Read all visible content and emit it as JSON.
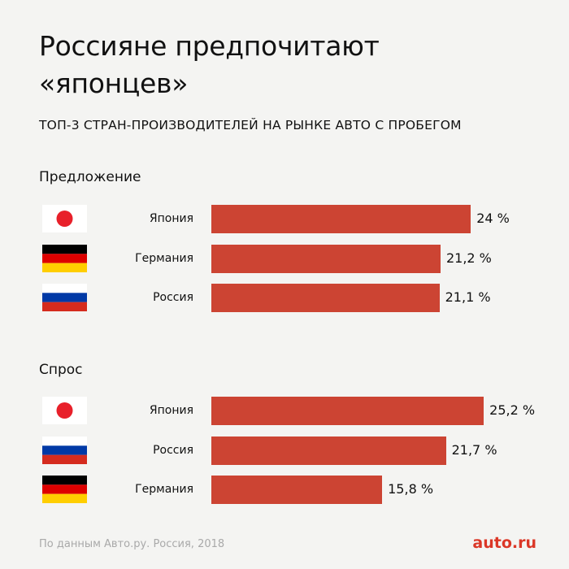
{
  "title": "Россияне предпочитают «японцев»",
  "subtitle": "ТОП-3 СТРАН-ПРОИЗВОДИТЕЛЕЙ НА РЫНКЕ АВТО С ПРОБЕГОМ",
  "source": "По данным Авто.ру. Россия, 2018",
  "brand": "auto.ru",
  "colors": {
    "bar": "#cc4433",
    "brand": "#db3727",
    "background": "#f4f4f2"
  },
  "chart_data": [
    {
      "type": "bar",
      "orientation": "horizontal",
      "title": "Предложение",
      "unit": "%",
      "categories": [
        "Япония",
        "Германия",
        "Россия"
      ],
      "values": [
        24,
        21.2,
        21.1
      ],
      "value_labels": [
        "24 %",
        "21,2 %",
        "21,1 %"
      ],
      "flags": [
        "japan-flag-icon",
        "germany-flag-icon",
        "russia-flag-icon"
      ],
      "grid": false,
      "legend": "none"
    },
    {
      "type": "bar",
      "orientation": "horizontal",
      "title": "Спрос",
      "unit": "%",
      "categories": [
        "Япония",
        "Россия",
        "Германия"
      ],
      "values": [
        25.2,
        21.7,
        15.8
      ],
      "value_labels": [
        "25,2 %",
        "21,7 %",
        "15,8 %"
      ],
      "flags": [
        "japan-flag-icon",
        "russia-flag-icon",
        "germany-flag-icon"
      ],
      "grid": false,
      "legend": "none"
    }
  ]
}
